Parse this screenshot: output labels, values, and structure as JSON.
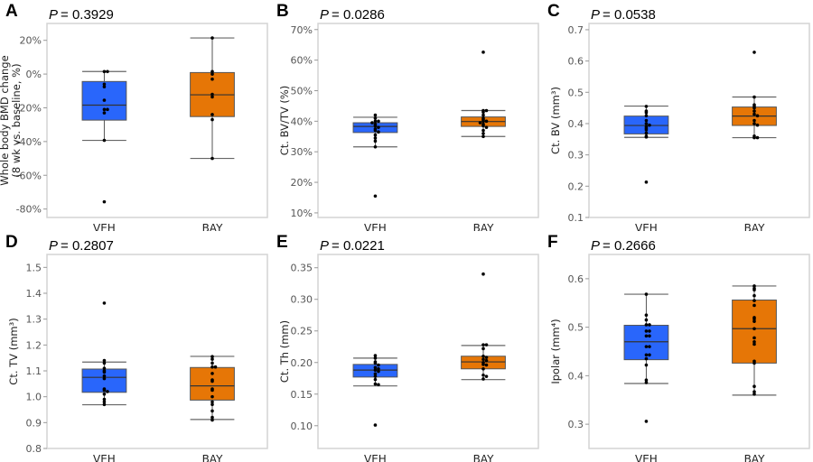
{
  "colors": {
    "VEH": "#2966fb",
    "BAY": "#e67606",
    "frame": "#d4d4d4",
    "point": "#000000"
  },
  "chart_data": [
    {
      "type": "box",
      "panel": "A",
      "p_label": "P",
      "p_value": "= 0.3929",
      "ylabel": [
        "Whole body BMD change",
        "(8 wk vs. baseline, %)"
      ],
      "ylim": [
        -85,
        30
      ],
      "ticks": [
        20,
        0,
        -20,
        -40,
        -60,
        -80
      ],
      "tick_labels": [
        "20%",
        "0%",
        "-20%",
        "-40%",
        "-60%",
        "-80%"
      ],
      "categories": [
        "VEH",
        "BAY"
      ],
      "groups": [
        {
          "name": "VEH",
          "whisker_high": 1.5,
          "q3": -4.4,
          "median": -18.4,
          "q1": -27.3,
          "whisker_low": -39.3,
          "points": [
            1.5,
            1.5,
            -6,
            -7.5,
            -15.5,
            -21,
            -21,
            -23,
            -39.3,
            -75.7
          ]
        },
        {
          "name": "BAY",
          "whisker_high": 21.4,
          "q3": 0.9,
          "median": -12.3,
          "q1": -25.2,
          "whisker_low": -50,
          "points": [
            21.4,
            1.5,
            0,
            -3,
            -12,
            -13.5,
            -24,
            -27,
            -50
          ]
        }
      ]
    },
    {
      "type": "box",
      "panel": "B",
      "p_label": "P",
      "p_value": "= 0.0286",
      "ylabel": [
        "Ct. BV/TV (%)"
      ],
      "ylim": [
        8.5,
        72
      ],
      "ticks": [
        70,
        60,
        50,
        40,
        30,
        20,
        10
      ],
      "tick_labels": [
        "70%",
        "60%",
        "50%",
        "40%",
        "30%",
        "20%",
        "10%"
      ],
      "categories": [
        "VEH",
        "BAY"
      ],
      "groups": [
        {
          "name": "VEH",
          "whisker_high": 41.3,
          "q3": 39.5,
          "median": 38.3,
          "q1": 36.3,
          "whisker_low": 31.6,
          "points": [
            42,
            41,
            40,
            40,
            39.5,
            39,
            38.5,
            38,
            37.5,
            37,
            36.5,
            35.5,
            34.5,
            33.5,
            31.6,
            15.5
          ]
        },
        {
          "name": "BAY",
          "whisker_high": 43.5,
          "q3": 41.4,
          "median": 39.9,
          "q1": 38.3,
          "whisker_low": 35,
          "points": [
            62.6,
            43.5,
            43.5,
            43,
            42,
            41,
            40.5,
            40,
            40,
            39.5,
            39,
            38.5,
            38,
            37,
            36,
            35
          ]
        }
      ]
    },
    {
      "type": "box",
      "panel": "C",
      "p_label": "P",
      "p_value": "= 0.0538",
      "ylabel": [
        "Ct. BV (mm³)"
      ],
      "ylim": [
        0.1,
        0.72
      ],
      "ticks": [
        0.7,
        0.6,
        0.5,
        0.4,
        0.3,
        0.2,
        0.1
      ],
      "tick_labels": [
        "0.7",
        "0.6",
        "0.5",
        "0.4",
        "0.3",
        "0.2",
        "0.1"
      ],
      "categories": [
        "VEH",
        "BAY"
      ],
      "groups": [
        {
          "name": "VEH",
          "whisker_high": 0.456,
          "q3": 0.424,
          "median": 0.394,
          "q1": 0.367,
          "whisker_low": 0.356,
          "points": [
            0.455,
            0.44,
            0.435,
            0.425,
            0.41,
            0.4,
            0.395,
            0.39,
            0.385,
            0.38,
            0.37,
            0.36,
            0.357,
            0.213
          ]
        },
        {
          "name": "BAY",
          "whisker_high": 0.485,
          "q3": 0.453,
          "median": 0.424,
          "q1": 0.394,
          "whisker_low": 0.355,
          "points": [
            0.628,
            0.485,
            0.46,
            0.455,
            0.45,
            0.44,
            0.43,
            0.425,
            0.41,
            0.4,
            0.395,
            0.36,
            0.355,
            0.355
          ]
        }
      ]
    },
    {
      "type": "box",
      "panel": "D",
      "p_label": "P",
      "p_value": "= 0.2807",
      "ylabel": [
        "Ct. TV (mm³)"
      ],
      "ylim": [
        0.8,
        1.55
      ],
      "ticks": [
        1.5,
        1.4,
        1.3,
        1.2,
        1.1,
        1.0,
        0.9,
        0.8
      ],
      "tick_labels": [
        "1.5",
        "1.4",
        "1.3",
        "1.2",
        "1.1",
        "1.0",
        "0.9",
        "0.8"
      ],
      "categories": [
        "VEH",
        "BAY"
      ],
      "groups": [
        {
          "name": "VEH",
          "whisker_high": 1.134,
          "q3": 1.107,
          "median": 1.075,
          "q1": 1.017,
          "whisker_low": 0.969,
          "points": [
            1.362,
            1.14,
            1.13,
            1.11,
            1.1,
            1.095,
            1.08,
            1.07,
            1.03,
            1.025,
            1.02,
            1.01,
            0.99,
            0.98,
            0.97
          ]
        },
        {
          "name": "BAY",
          "whisker_high": 1.156,
          "q3": 1.113,
          "median": 1.042,
          "q1": 0.987,
          "whisker_low": 0.912,
          "points": [
            1.155,
            1.145,
            1.13,
            1.115,
            1.115,
            1.09,
            1.065,
            1.06,
            1.03,
            1.025,
            1.0,
            0.98,
            0.97,
            0.945,
            0.92,
            0.91
          ]
        }
      ]
    },
    {
      "type": "box",
      "panel": "E",
      "p_label": "P",
      "p_value": "= 0.0221",
      "ylabel": [
        "Ct. Th (mm)"
      ],
      "ylim": [
        0.064,
        0.371
      ],
      "ticks": [
        0.35,
        0.3,
        0.25,
        0.2,
        0.15,
        0.1
      ],
      "tick_labels": [
        "0.35",
        "0.30",
        "0.25",
        "0.20",
        "0.15",
        "0.10"
      ],
      "categories": [
        "VEH",
        "BAY"
      ],
      "groups": [
        {
          "name": "VEH",
          "whisker_high": 0.207,
          "q3": 0.197,
          "median": 0.188,
          "q1": 0.177,
          "whisker_low": 0.163,
          "points": [
            0.211,
            0.207,
            0.201,
            0.199,
            0.196,
            0.192,
            0.19,
            0.188,
            0.186,
            0.182,
            0.178,
            0.173,
            0.166,
            0.165,
            0.101
          ]
        },
        {
          "name": "BAY",
          "whisker_high": 0.227,
          "q3": 0.21,
          "median": 0.201,
          "q1": 0.19,
          "whisker_low": 0.173,
          "points": [
            0.34,
            0.228,
            0.228,
            0.222,
            0.21,
            0.208,
            0.205,
            0.203,
            0.2,
            0.197,
            0.196,
            0.19,
            0.18,
            0.178,
            0.174
          ]
        }
      ]
    },
    {
      "type": "box",
      "panel": "F",
      "p_label": "P",
      "p_value": "= 0.2666",
      "ylabel": [
        "Ipolar (mm⁴)"
      ],
      "ylim": [
        0.25,
        0.65
      ],
      "ticks": [
        0.6,
        0.5,
        0.4,
        0.3
      ],
      "tick_labels": [
        "0.6",
        "0.5",
        "0.4",
        "0.3"
      ],
      "categories": [
        "VEH",
        "BAY"
      ],
      "groups": [
        {
          "name": "VEH",
          "whisker_high": 0.568,
          "q3": 0.504,
          "median": 0.47,
          "q1": 0.433,
          "whisker_low": 0.384,
          "points": [
            0.568,
            0.525,
            0.515,
            0.505,
            0.505,
            0.492,
            0.492,
            0.482,
            0.482,
            0.46,
            0.46,
            0.443,
            0.443,
            0.435,
            0.422,
            0.391,
            0.386,
            0.306
          ]
        },
        {
          "name": "BAY",
          "whisker_high": 0.585,
          "q3": 0.556,
          "median": 0.497,
          "q1": 0.426,
          "whisker_low": 0.36,
          "points": [
            0.585,
            0.58,
            0.577,
            0.565,
            0.555,
            0.545,
            0.52,
            0.517,
            0.512,
            0.497,
            0.478,
            0.47,
            0.465,
            0.43,
            0.426,
            0.378,
            0.367,
            0.362
          ]
        }
      ]
    }
  ]
}
